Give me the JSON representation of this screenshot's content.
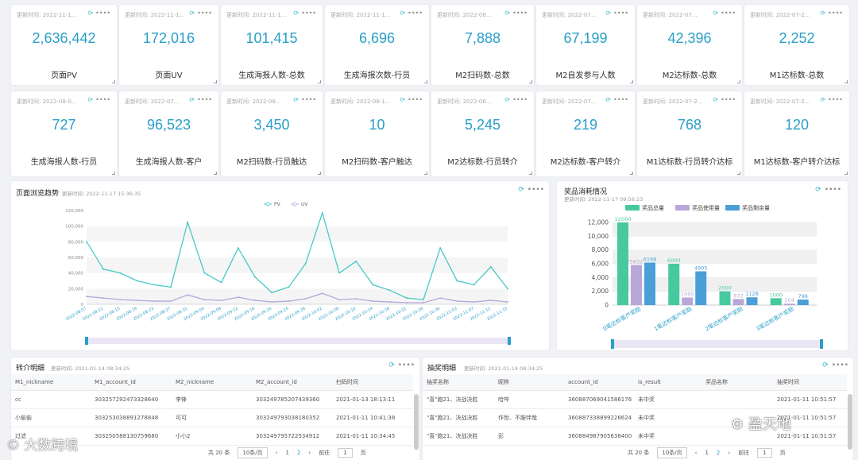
{
  "kpi_row1": [
    {
      "updated": "更新时间: 2022-11-1...",
      "value": "2,636,442",
      "label": "页面PV"
    },
    {
      "updated": "更新时间: 2022-11-1...",
      "value": "172,016",
      "label": "页面UV"
    },
    {
      "updated": "更新时间: 2022-11-1...",
      "value": "101,415",
      "label": "生成海报人数-总数"
    },
    {
      "updated": "更新时间: 2022-11-1...",
      "value": "6,696",
      "label": "生成海报次数-行员"
    },
    {
      "updated": "更新时间: 2022-08...",
      "value": "7,888",
      "label": "M2扫码数-总数"
    },
    {
      "updated": "更新时间: 2022-07...",
      "value": "67,199",
      "label": "M2自发参与人数"
    },
    {
      "updated": "更新时间: 2022-07...",
      "value": "42,396",
      "label": "M2达标数-总数"
    },
    {
      "updated": "更新时间: 2022-07-2...",
      "value": "2,252",
      "label": "M1达标数-总数"
    }
  ],
  "kpi_row2": [
    {
      "updated": "更新时间: 2022-08-0...",
      "value": "727",
      "label": "生成海报人数-行员"
    },
    {
      "updated": "更新时间: 2022-07...",
      "value": "96,523",
      "label": "生成海报人数-客户"
    },
    {
      "updated": "更新时间: 2022-08...",
      "value": "3,450",
      "label": "M2扫码数-行员触达"
    },
    {
      "updated": "更新时间: 2022-08-1...",
      "value": "10",
      "label": "M2扫码数-客户触达"
    },
    {
      "updated": "更新时间: 2022-06...",
      "value": "5,245",
      "label": "M2达标数-行员转介"
    },
    {
      "updated": "更新时间: 2022-07...",
      "value": "219",
      "label": "M2达标数-客户转介"
    },
    {
      "updated": "更新时间: 2022-07-2...",
      "value": "768",
      "label": "M1达标数-行员转介达标"
    },
    {
      "updated": "更新时间: 2022-07-2...",
      "value": "120",
      "label": "M1达标数-客户转介达标"
    }
  ],
  "icons": {
    "refresh": "⟳",
    "more": "••••"
  },
  "trend": {
    "title": "页面浏览趋势",
    "updated": "更新时间: 2022-11-17 15:36:35"
  },
  "prize": {
    "title": "奖品消耗情况",
    "updated": "更新时间: 2022-11-17 09:56:23"
  },
  "chart_data": [
    {
      "type": "line",
      "x": [
        "2022-08-07",
        "2022-08-11",
        "2022-08-15",
        "2022-08-19",
        "2022-08-23",
        "2022-08-27",
        "2022-08-31",
        "2022-09-04",
        "2022-09-08",
        "2022-09-12",
        "2022-09-16",
        "2022-09-20",
        "2022-09-24",
        "2022-09-28",
        "2022-10-02",
        "2022-10-06",
        "2022-10-10",
        "2022-10-14",
        "2022-10-18",
        "2022-10-22",
        "2022-10-26",
        "2022-10-30",
        "2022-11-03",
        "2022-11-07",
        "2022-11-11",
        "2022-11-15"
      ],
      "x_tick_labels": [
        "2022-08-07",
        "2022-08-11",
        "2022-08-15",
        "2022-08-19",
        "2022-08-23",
        "2022-08-27",
        "2022-08-31",
        "2022-09-04",
        "2022-09-08",
        "2022-09-12",
        "2022-09-16",
        "2022-09-20",
        "2022-09-24",
        "2022-09-28",
        "2022-10-02",
        "2022-10-06",
        "2022-10-10",
        "2022-10-14",
        "2022-10-18",
        "2022-10-22",
        "2022-10-26",
        "2022-10-30",
        "2022-11-03",
        "2022-11-07",
        "2022-11-11",
        "2022-11-15"
      ],
      "series": [
        {
          "name": "PV",
          "color": "#47c9c6",
          "values": [
            80000,
            45000,
            40000,
            30000,
            25000,
            22000,
            105000,
            40000,
            28000,
            72000,
            35000,
            15000,
            22000,
            52000,
            117000,
            40000,
            55000,
            25000,
            18000,
            8000,
            6000,
            72000,
            30000,
            25000,
            48000,
            20000
          ]
        },
        {
          "name": "UV",
          "color": "#b8a7d8",
          "values": [
            10000,
            8000,
            6000,
            5000,
            4000,
            4000,
            12000,
            6000,
            5000,
            9000,
            5000,
            3000,
            4000,
            7000,
            14000,
            6000,
            7000,
            4000,
            3000,
            2000,
            2000,
            8000,
            4000,
            3000,
            5000,
            3000
          ]
        }
      ],
      "ylim": [
        0,
        120000
      ],
      "y_ticks": [
        "0",
        "20,000",
        "40,000",
        "60,000",
        "80,000",
        "100,000",
        "120,000"
      ],
      "grid": true,
      "legend": "top-center"
    },
    {
      "type": "bar",
      "categories": [
        "0笔达标客户奖励",
        "1笔达标客户奖励",
        "2笔达标客户奖励",
        "3笔达标客户奖励"
      ],
      "series": [
        {
          "name": "奖品总量",
          "color": "#47c9a0",
          "values": [
            12000,
            6000,
            2000,
            1000
          ]
        },
        {
          "name": "奖品使用量",
          "color": "#b8a7d8",
          "values": [
            5832,
            1095,
            872,
            204
          ]
        },
        {
          "name": "奖品剩余量",
          "color": "#4a9fd8",
          "values": [
            6168,
            4905,
            1128,
            796
          ]
        }
      ],
      "ylim": [
        0,
        12000
      ],
      "y_ticks": [
        "0",
        "2,000",
        "4,000",
        "6,000",
        "8,000",
        "10,000",
        "12,000"
      ],
      "grid": true,
      "legend": "top-center"
    }
  ],
  "referral": {
    "title": "转介明细",
    "updated": "更新时间: 2021-01-14 08:34:25",
    "columns": [
      "M1_nickname",
      "M1_account_id",
      "M2_nickname",
      "M2_account_id",
      "扫码时间"
    ],
    "rows": [
      [
        "cc",
        "303257292473328640",
        "李锋",
        "303249785207439360",
        "2021-01-13 18:13:11"
      ],
      [
        "小偷偷",
        "303253038891278848",
        "可可",
        "303249793038180352",
        "2021-01-11 10:41:38"
      ],
      [
        "过滤",
        "303250588130759680",
        "小小2",
        "303249795722534912",
        "2021-01-11 10:34:45"
      ]
    ],
    "pager": {
      "total": "共 20 条",
      "size": "10条/页",
      "prev": "‹",
      "pages": [
        "1",
        "2"
      ],
      "next": "›",
      "goto": "前往",
      "page": "1",
      "unit": "页"
    }
  },
  "lottery": {
    "title": "抽奖明细",
    "updated": "更新时间: 2021-01-14 08:34:25",
    "columns": [
      "抽奖名称",
      "昵称",
      "account_id",
      "is_result",
      "奖品名称",
      "抽奖时间"
    ],
    "rows": [
      [
        "\"喜\"跑21、决战决胜",
        "哈哔",
        "360887069041586176",
        "未中奖",
        "",
        "2021-01-11 10:51:57"
      ],
      [
        "\"喜\"跑21、决战决胜",
        "作哲、不服伴哉",
        "360887338899226624",
        "未中奖",
        "",
        "2021-01-11 10:51:57"
      ],
      [
        "\"喜\"跑21、决战决胜",
        "彭",
        "360884987905638400",
        "未中奖",
        "",
        "2021-01-11 10:51:57"
      ]
    ],
    "pager": {
      "total": "共 20 条",
      "size": "10条/页",
      "prev": "‹",
      "pages": [
        "1",
        "2"
      ],
      "next": "›",
      "goto": "前往",
      "page": "1",
      "unit": "页"
    }
  },
  "watermarks": {
    "left": "大数跨境",
    "right": "盈天地"
  }
}
